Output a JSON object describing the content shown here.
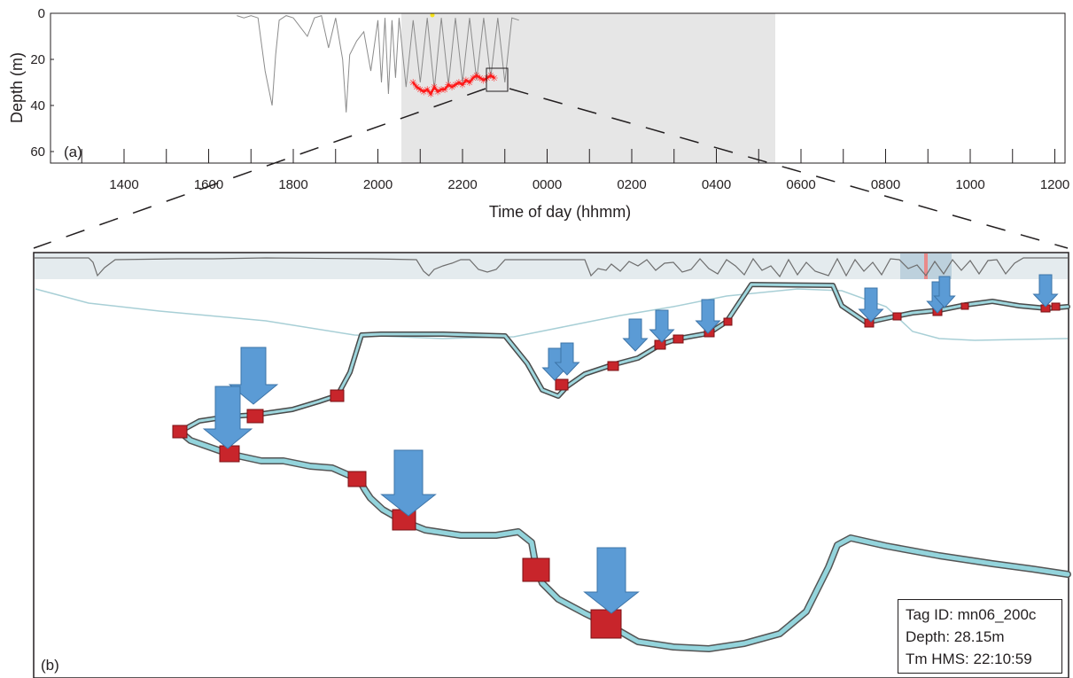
{
  "chart_data": [
    {
      "panel_label": "(a)",
      "type": "line",
      "xlabel": "Time of day (hhmm)",
      "ylabel": "Depth (m)",
      "x_ticks": [
        "1400",
        "1600",
        "1800",
        "2000",
        "2200",
        "0000",
        "0200",
        "0400",
        "0600",
        "0800",
        "1000",
        "1200"
      ],
      "y_ticks": [
        0,
        20,
        40,
        60
      ],
      "ylim": [
        0,
        65
      ],
      "y_inverted": true,
      "highlight_range": [
        "2005",
        "0520"
      ],
      "series": [
        {
          "x": [
            1640,
            1650,
            1700,
            1710,
            1720,
            1730,
            1735,
            1740,
            1750,
            1800,
            1820,
            1830,
            1840,
            1850,
            1900,
            1910,
            1915,
            1920,
            1930,
            1940,
            1950,
            2000,
            2005,
            2010,
            2015,
            2020,
            2025,
            2030,
            2040,
            2050,
            2100,
            2110,
            2120,
            2130,
            2140,
            2150,
            2200,
            2210,
            2220,
            2230,
            2240,
            2250,
            2300,
            2310,
            2320
          ],
          "y": [
            1,
            2,
            1,
            2,
            25,
            40,
            18,
            3,
            1,
            2,
            10,
            2,
            1,
            15,
            2,
            20,
            43,
            18,
            12,
            8,
            25,
            3,
            30,
            2,
            35,
            3,
            28,
            2,
            32,
            3,
            30,
            2,
            33,
            2,
            31,
            2,
            30,
            2,
            29,
            2,
            28,
            2,
            30,
            2,
            3
          ],
          "color": "#8c8c8c"
        },
        {
          "x": [
            2050,
            2055,
            2100,
            2105,
            2110,
            2115,
            2120,
            2125,
            2130,
            2135,
            2140,
            2145,
            2150,
            2155,
            2200,
            2205,
            2210,
            2215,
            2220,
            2225,
            2230,
            2235,
            2240,
            2245
          ],
          "y": [
            30,
            32,
            33,
            34,
            33,
            35,
            32,
            34,
            33,
            33,
            31,
            32,
            31,
            30,
            31,
            29,
            30,
            28,
            27,
            28,
            29,
            28,
            27,
            28
          ],
          "color": "#ff1a1a"
        }
      ]
    },
    {
      "panel_label": "(b)",
      "type": "3d-track",
      "info": {
        "tag_id": "Tag ID: mn06_200c",
        "depth": "Depth: 28.15m",
        "time": "Tm HMS: 22:10:59"
      }
    }
  ]
}
